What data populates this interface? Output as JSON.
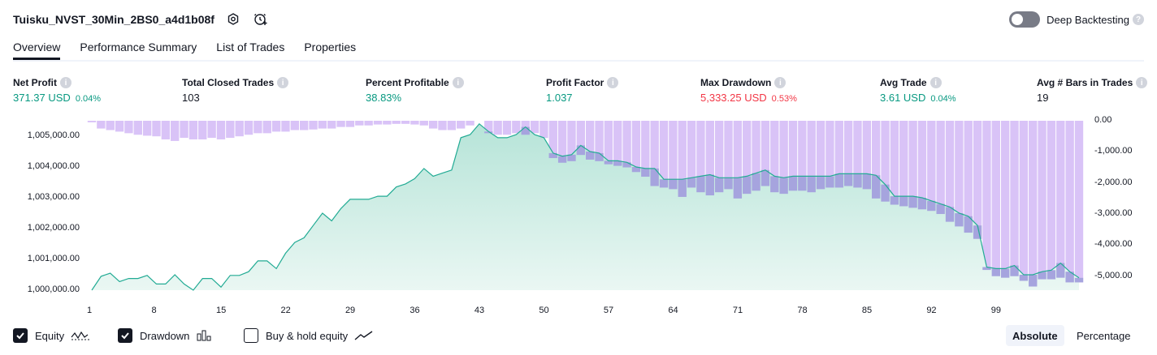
{
  "header": {
    "strategy_name": "Tuisku_NVST_30Min_2BS0_a4d1b08f",
    "deep_backtesting_label": "Deep Backtesting",
    "deep_backtesting_enabled": false
  },
  "tabs": [
    {
      "label": "Overview",
      "active": true
    },
    {
      "label": "Performance Summary",
      "active": false
    },
    {
      "label": "List of Trades",
      "active": false
    },
    {
      "label": "Properties",
      "active": false
    }
  ],
  "stats": {
    "net_profit": {
      "label": "Net Profit",
      "value": "371.37 USD",
      "pct": "0.04%"
    },
    "total_closed_trades": {
      "label": "Total Closed Trades",
      "value": "103"
    },
    "percent_profitable": {
      "label": "Percent Profitable",
      "value": "38.83%"
    },
    "profit_factor": {
      "label": "Profit Factor",
      "value": "1.037"
    },
    "max_drawdown": {
      "label": "Max Drawdown",
      "value": "5,333.25 USD",
      "pct": "0.53%"
    },
    "avg_trade": {
      "label": "Avg Trade",
      "value": "3.61 USD",
      "pct": "0.04%"
    },
    "avg_bars": {
      "label": "Avg # Bars in Trades",
      "value": "19"
    }
  },
  "chart_data": {
    "type": "area",
    "x_ticks": [
      1,
      8,
      15,
      22,
      29,
      36,
      43,
      50,
      57,
      64,
      71,
      78,
      85,
      92,
      99
    ],
    "y_left": {
      "ticks": [
        "1,000,000.00",
        "1,001,000.00",
        "1,002,000.00",
        "1,003,000.00",
        "1,004,000.00",
        "1,005,000.00"
      ],
      "range": [
        1000000,
        1005500
      ]
    },
    "y_right": {
      "ticks": [
        "0.00",
        "-1,000.00",
        "-2,000.00",
        "-3,000.00",
        "-4,000.00",
        "-5,000.00"
      ],
      "range": [
        -5450,
        0
      ]
    },
    "series": [
      {
        "name": "Equity",
        "values": [
          1000000,
          1000450,
          1000550,
          1000280,
          1000380,
          1000380,
          1000480,
          1000200,
          1000200,
          1000500,
          1000200,
          1000000,
          1000380,
          1000380,
          1000100,
          1000480,
          1000480,
          1000600,
          1000950,
          1000950,
          1000700,
          1001200,
          1001550,
          1001700,
          1002100,
          1002500,
          1002250,
          1002650,
          1002950,
          1002950,
          1002950,
          1003050,
          1003050,
          1003350,
          1003450,
          1003620,
          1003950,
          1003700,
          1003800,
          1003900,
          1004950,
          1005050,
          1005400,
          1005150,
          1004950,
          1004950,
          1005050,
          1005300,
          1005050,
          1004950,
          1004450,
          1004350,
          1004400,
          1004700,
          1004500,
          1004450,
          1004200,
          1004200,
          1004150,
          1004000,
          1003950,
          1003950,
          1003600,
          1003600,
          1003600,
          1003650,
          1003700,
          1003750,
          1003650,
          1003650,
          1003650,
          1003700,
          1003800,
          1003900,
          1003700,
          1003650,
          1003700,
          1003700,
          1003700,
          1003700,
          1003700,
          1003780,
          1003780,
          1003780,
          1003780,
          1003730,
          1003430,
          1003050,
          1003050,
          1003050,
          1003000,
          1002900,
          1002800,
          1002700,
          1002500,
          1002400,
          1002100,
          1000750,
          1000700,
          1000700,
          1000800,
          1000500,
          1000500,
          1000600,
          1000650,
          1000880,
          1000600,
          1000400
        ]
      },
      {
        "name": "Drawdown",
        "values": [
          -50,
          -250,
          -300,
          -350,
          -400,
          -450,
          -480,
          -500,
          -600,
          -650,
          -550,
          -600,
          -600,
          -550,
          -600,
          -550,
          -500,
          -450,
          -400,
          -400,
          -350,
          -350,
          -300,
          -300,
          -280,
          -250,
          -250,
          -200,
          -200,
          -150,
          -150,
          -120,
          -120,
          -100,
          -100,
          -120,
          -150,
          -250,
          -300,
          -300,
          -250,
          -150,
          0,
          -400,
          -450,
          -450,
          -400,
          -450,
          -400,
          -550,
          -1200,
          -1350,
          -1300,
          -1100,
          -1250,
          -1300,
          -1400,
          -1450,
          -1500,
          -1650,
          -1800,
          -2100,
          -2150,
          -2200,
          -2450,
          -2150,
          -2300,
          -2400,
          -2300,
          -2200,
          -2500,
          -2350,
          -2250,
          -2100,
          -2300,
          -2350,
          -2250,
          -2250,
          -2300,
          -2200,
          -2150,
          -2150,
          -2100,
          -2150,
          -2200,
          -2500,
          -2600,
          -2700,
          -2750,
          -2800,
          -2850,
          -2900,
          -3000,
          -3250,
          -3400,
          -3600,
          -3800,
          -4800,
          -5000,
          -5050,
          -5000,
          -5150,
          -5333.25,
          -5100,
          -5100,
          -5050,
          -5200,
          -5200
        ]
      }
    ]
  },
  "legend": {
    "equity": {
      "label": "Equity",
      "checked": true,
      "icon": "equity-line-icon"
    },
    "drawdown": {
      "label": "Drawdown",
      "checked": true,
      "icon": "drawdown-bars-icon"
    },
    "buyhold": {
      "label": "Buy & hold equity",
      "checked": false,
      "icon": "buyhold-line-icon"
    }
  },
  "scale_toggle": {
    "absolute_label": "Absolute",
    "percentage_label": "Percentage",
    "selected": "Absolute"
  },
  "colors": {
    "equity_line": "#22ab94",
    "equity_fill_top": "#b6e4d8",
    "equity_fill_bottom": "#eaf7f3",
    "drawdown_bar": "#d9c3f7",
    "drawdown_overlap": "#a6a4de",
    "profit": "#089981",
    "loss": "#f23645"
  }
}
